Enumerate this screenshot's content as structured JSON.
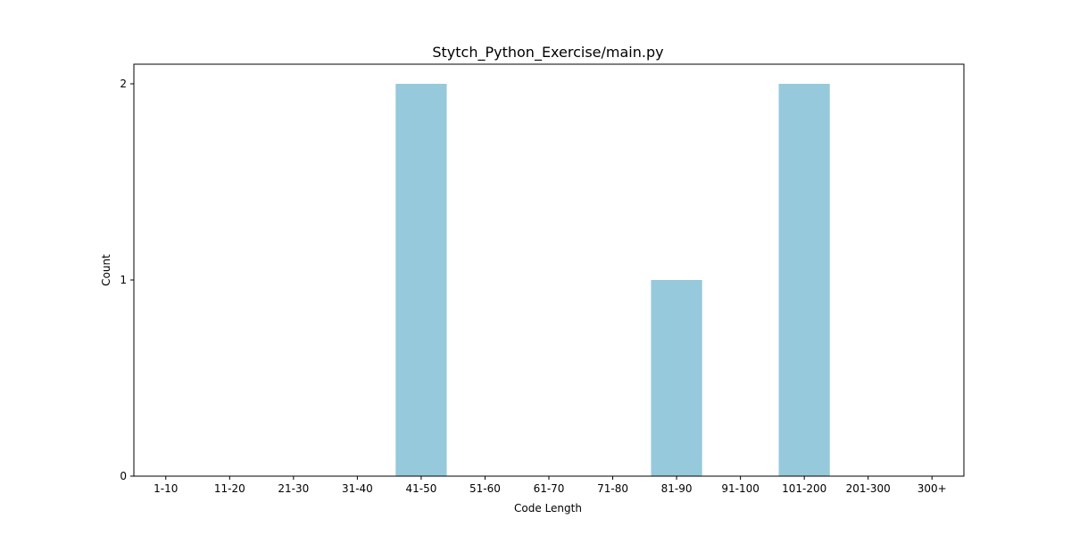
{
  "chart_data": {
    "type": "bar",
    "title": "Stytch_Python_Exercise/main.py",
    "xlabel": "Code Length",
    "ylabel": "Count",
    "categories": [
      "1-10",
      "11-20",
      "21-30",
      "31-40",
      "41-50",
      "51-60",
      "61-70",
      "71-80",
      "81-90",
      "91-100",
      "101-200",
      "201-300",
      "300+"
    ],
    "values": [
      0,
      0,
      0,
      0,
      2,
      0,
      0,
      0,
      1,
      0,
      2,
      0,
      0
    ],
    "ylim": [
      0,
      2.1
    ],
    "yticks": [
      0,
      1,
      2
    ],
    "grid": false,
    "legend": "none",
    "bar_color": "#96c9dc"
  }
}
